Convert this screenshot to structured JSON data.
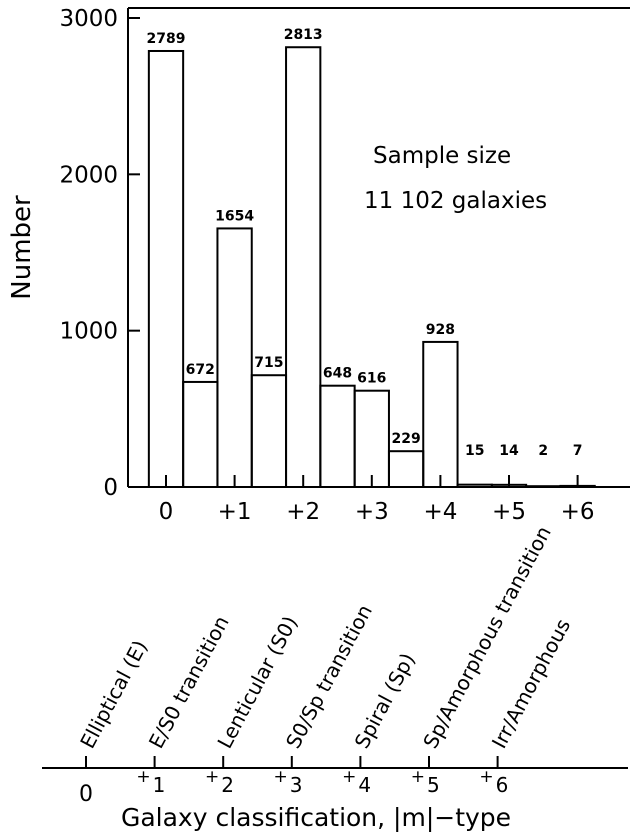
{
  "chart_data": {
    "type": "bar",
    "ylabel": "Number",
    "ylim": [
      0,
      3000
    ],
    "yticks": [
      0,
      1000,
      2000,
      3000
    ],
    "x": [
      0,
      0.5,
      1,
      1.5,
      2,
      2.5,
      3,
      3.5,
      4,
      4.5,
      5,
      5.5,
      6
    ],
    "values": [
      2789,
      672,
      1654,
      715,
      2813,
      648,
      616,
      229,
      928,
      15,
      14,
      2,
      7
    ],
    "value_labels": [
      "2789",
      "672",
      "1654",
      "715",
      "2813",
      "648",
      "616",
      "229",
      "928",
      "15",
      "14",
      "2",
      "7"
    ],
    "xtick_labels": [
      "0",
      "+1",
      "+2",
      "+3",
      "+4",
      "+5",
      "+6"
    ],
    "annotation": [
      "Sample size",
      "11 102 galaxies"
    ],
    "classes": [
      "Elliptical (E)",
      "E/S0 transition",
      "Lenticular (S0)",
      "S0/Sp transition",
      "Spiral (Sp)",
      "Sp/Amorphous transition",
      "Irr/Amorphous"
    ],
    "scale_labels": [
      {
        "base": "0",
        "sup": ""
      },
      {
        "base": "1",
        "sup": "+"
      },
      {
        "base": "2",
        "sup": "+"
      },
      {
        "base": "3",
        "sup": "+"
      },
      {
        "base": "4",
        "sup": "+"
      },
      {
        "base": "5",
        "sup": "+"
      },
      {
        "base": "6",
        "sup": "+"
      }
    ],
    "xlabel": "Galaxy classification, |m|−type",
    "grid": false,
    "legend": "none"
  }
}
